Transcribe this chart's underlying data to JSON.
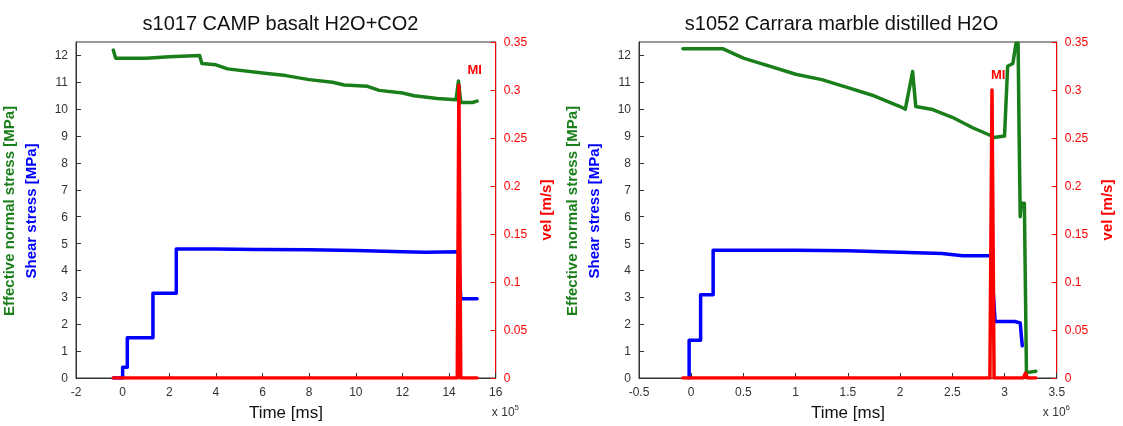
{
  "chart_data": [
    {
      "type": "line",
      "title": "s1017 CAMP basalt H2O+CO2",
      "xlabel": "Time [ms]",
      "y2label": "vel [m/s]",
      "marker": "none",
      "line_style": "solid",
      "grid": false,
      "xlim": [
        -2,
        16
      ],
      "xticks": [
        -2,
        0,
        2,
        4,
        6,
        8,
        10,
        12,
        14,
        16
      ],
      "ylim": [
        0,
        12.5
      ],
      "yticks": [
        0,
        1,
        2,
        3,
        4,
        5,
        6,
        7,
        8,
        9,
        10,
        11,
        12
      ],
      "y2lim": [
        0,
        0.35
      ],
      "y2ticks": [
        0,
        0.05,
        0.1,
        0.15,
        0.2,
        0.25,
        0.3,
        0.35
      ],
      "annotations": [
        "MI",
        "x 10$^{5}$"
      ],
      "series": [
        {
          "name": "Effective normal stress [MPa]",
          "color": "#1a7f1a",
          "x": [
            -0.4,
            -0.3,
            1,
            2,
            3.3,
            3.4,
            4,
            4.5,
            6,
            7,
            8,
            9,
            9.5,
            10.5,
            11,
            12,
            12.5,
            13.5,
            14.3,
            14.4,
            14.5,
            15,
            15.2
          ],
          "values": [
            12.2,
            11.9,
            11.9,
            11.95,
            12.0,
            11.7,
            11.65,
            11.5,
            11.35,
            11.25,
            11.1,
            11.0,
            10.9,
            10.85,
            10.7,
            10.6,
            10.5,
            10.4,
            10.35,
            11.05,
            10.25,
            10.25,
            10.3
          ]
        },
        {
          "name": "Shear stress [MPa]",
          "color": "#0000ff",
          "x": [
            -0.4,
            0,
            0,
            0.2,
            0.2,
            1.3,
            1.3,
            2.3,
            2.3,
            4,
            6,
            8,
            10,
            12,
            13,
            14.4,
            14.5,
            15.2
          ],
          "values": [
            0,
            0,
            0.4,
            0.4,
            1.5,
            1.5,
            3.15,
            3.15,
            4.8,
            4.8,
            4.78,
            4.77,
            4.74,
            4.7,
            4.68,
            4.7,
            2.95,
            2.95
          ]
        },
        {
          "color": "#ff0000",
          "axis": "y2",
          "x": [
            -0.4,
            14.35,
            14.42,
            14.5,
            15.2
          ],
          "values": [
            0,
            0,
            0.305,
            0,
            0
          ]
        }
      ]
    },
    {
      "type": "line",
      "title": "s1052 Carrara marble distilled H2O",
      "xlabel": "Time [ms]",
      "y2label": "vel [m/s]",
      "marker": "none",
      "line_style": "solid",
      "grid": false,
      "xlim": [
        -0.5,
        3.5
      ],
      "xticks": [
        -0.5,
        0,
        0.5,
        1,
        1.5,
        2,
        2.5,
        3,
        3.5
      ],
      "ylim": [
        0,
        12.5
      ],
      "yticks": [
        0,
        1,
        2,
        3,
        4,
        5,
        6,
        7,
        8,
        9,
        10,
        11,
        12
      ],
      "y2lim": [
        0,
        0.35
      ],
      "y2ticks": [
        0,
        0.05,
        0.1,
        0.15,
        0.2,
        0.25,
        0.3,
        0.35
      ],
      "annotations": [
        "MI",
        "x 10$^{6}$"
      ],
      "series": [
        {
          "name": "Effective normal stress [MPa]",
          "color": "#1a7f1a",
          "x": [
            -0.08,
            0.3,
            0.5,
            0.75,
            1,
            1.25,
            1.5,
            1.75,
            2,
            2.05,
            2.12,
            2.15,
            2.3,
            2.5,
            2.7,
            2.85,
            2.9,
            3.0,
            3.03,
            3.08,
            3.11,
            3.13,
            3.14,
            3.15,
            3.16,
            3.19,
            3.21,
            3.3
          ],
          "values": [
            12.25,
            12.25,
            11.9,
            11.6,
            11.3,
            11.1,
            10.8,
            10.5,
            10.1,
            10.0,
            11.4,
            10.1,
            10.0,
            9.7,
            9.3,
            9.05,
            8.95,
            9.0,
            11.6,
            11.7,
            12.45,
            12.45,
            9.0,
            6.0,
            6.5,
            6.5,
            0.2,
            0.25
          ]
        },
        {
          "name": "Shear stress [MPa]",
          "color": "#0000ff",
          "x": [
            -0.02,
            -0.02,
            0.09,
            0.09,
            0.21,
            0.21,
            1,
            1.5,
            2,
            2.4,
            2.6,
            2.87,
            2.91,
            3.1,
            3.15,
            3.17
          ],
          "values": [
            0,
            1.4,
            1.4,
            3.1,
            3.1,
            4.75,
            4.75,
            4.73,
            4.68,
            4.63,
            4.55,
            4.55,
            2.1,
            2.1,
            2.05,
            1.2
          ]
        },
        {
          "color": "#ff0000",
          "axis": "y2",
          "x": [
            -0.08,
            2.86,
            2.88,
            2.9,
            3.18,
            3.2,
            3.22,
            3.3
          ],
          "values": [
            0,
            0,
            0.3,
            0,
            0,
            0.005,
            0,
            0
          ]
        }
      ]
    }
  ]
}
